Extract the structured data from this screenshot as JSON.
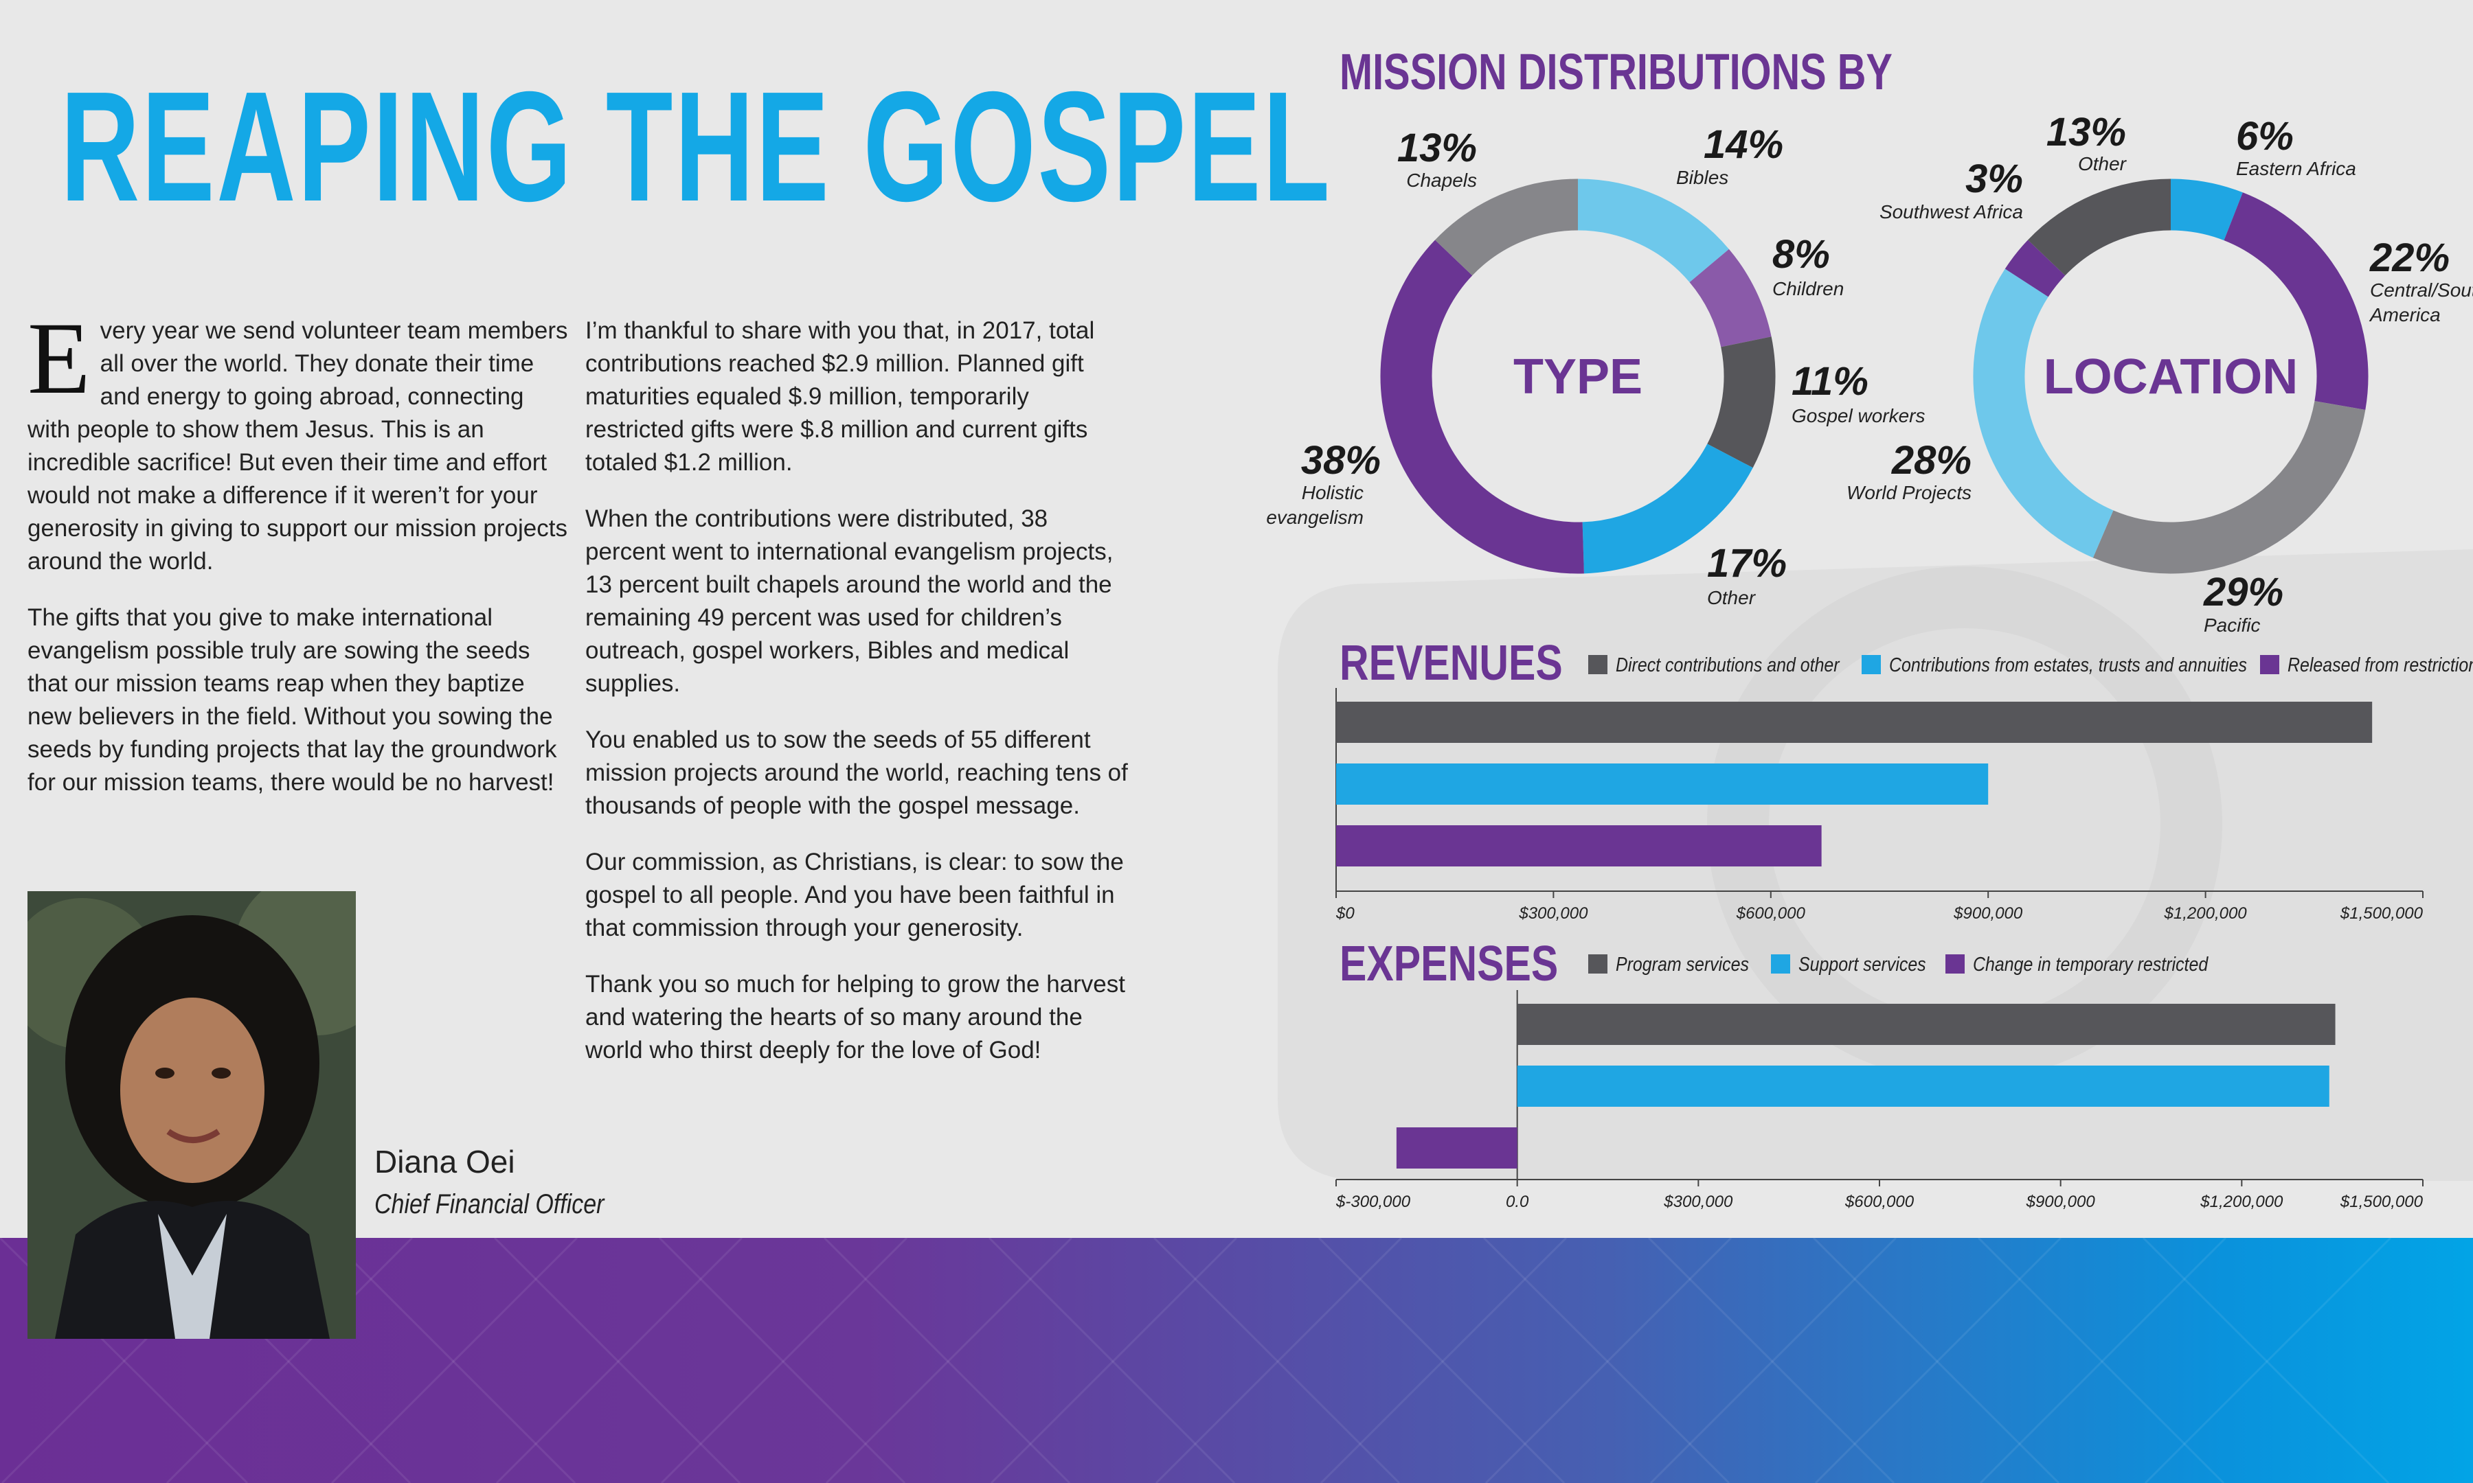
{
  "page": {
    "title": "REAPING THE GOSPEL",
    "dropcap": "E",
    "col1": [
      "very year we send volunteer team members all over the world. They donate their time and energy to going abroad, connecting with people to show them Jesus. This is an incredible sacrifice! But even their time and effort would not make a difference if it weren’t for your generosity in giving to support our mission projects around the world.",
      "The gifts that you give to make international evangelism possible truly are sowing the seeds that our mission teams reap when they baptize new believers in the field. Without you sowing the seeds by funding projects that lay the groundwork for our mission teams, there would be no harvest!"
    ],
    "col2": [
      "I’m thankful to share with you that, in 2017, total contributions reached $2.9 million. Planned gift maturities equaled $.9 million, temporarily restricted gifts were $.8 million and current gifts totaled $1.2 million.",
      "When the contributions were distributed, 38 percent went to international evangelism projects, 13 percent built chapels around the world and the remaining 49 percent was used for children’s outreach, gospel workers, Bibles and medical supplies.",
      "You enabled us to sow the seeds of 55 different mission projects around the world, reaching tens of thousands of people with the gospel message.",
      "Our commission, as Christians, is clear: to sow the gospel to all people. And you have been faithful in that commission through your generosity.",
      "Thank you so much for helping to grow the harvest and watering the hearts of so many around the world who thirst deeply for the love of God!"
    ],
    "author_name": "Diana Oei",
    "author_role": "Chief Financial Officer",
    "section_title": "MISSION DISTRIBUTIONS BY"
  },
  "colors": {
    "title_blue": "#14a8e6",
    "purple": "#6a3593",
    "dark_gray": "#56565a",
    "mid_gray": "#86868a",
    "light_blue": "#6ec8eb",
    "blue": "#1fa6e3",
    "light_purple": "#8a5aa9"
  },
  "chart_data": [
    {
      "type": "pie",
      "title": "TYPE",
      "slices": [
        {
          "label": "Bibles",
          "value": 14,
          "text": "14%",
          "color": "#6ec8eb"
        },
        {
          "label": "Children",
          "value": 8,
          "text": "8%",
          "color": "#8a5aa9"
        },
        {
          "label": "Gospel workers",
          "value": 11,
          "text": "11%",
          "color": "#56565a"
        },
        {
          "label": "Other",
          "value": 17,
          "text": "17%",
          "color": "#1fa6e3"
        },
        {
          "label": "Holistic evangelism",
          "value": 38,
          "text": "38%",
          "color": "#6a3593"
        },
        {
          "label": "Chapels",
          "value": 13,
          "text": "13%",
          "color": "#86868a"
        }
      ]
    },
    {
      "type": "pie",
      "title": "LOCATION",
      "slices": [
        {
          "label": "Eastern Africa",
          "value": 6,
          "text": "6%",
          "color": "#1fa6e3"
        },
        {
          "label": "Central/South America",
          "value": 22,
          "text": "22%",
          "color": "#6a3593"
        },
        {
          "label": "Pacific",
          "value": 29,
          "text": "29%",
          "color": "#86868a"
        },
        {
          "label": "World Projects",
          "value": 28,
          "text": "28%",
          "color": "#6ec8eb"
        },
        {
          "label": "Southwest Africa",
          "value": 3,
          "text": "3%",
          "color": "#6a3593"
        },
        {
          "label": "Other",
          "value": 13,
          "text": "13%",
          "color": "#56565a"
        }
      ]
    },
    {
      "type": "bar",
      "title": "REVENUES",
      "series": [
        {
          "name": "Direct contributions and other",
          "value": 1430000,
          "color": "#56565a"
        },
        {
          "name": "Contributions from estates, trusts and annuities",
          "value": 900000,
          "color": "#1fa6e3"
        },
        {
          "name": "Released from restriction",
          "value": 670000,
          "color": "#6a3593"
        }
      ],
      "xlim": [
        0,
        1500000
      ],
      "ticks": [
        0,
        300000,
        600000,
        900000,
        1200000,
        1500000
      ],
      "tick_labels": [
        "$0",
        "$300,000",
        "$600,000",
        "$900,000",
        "$1,200,000",
        "$1,500,000"
      ]
    },
    {
      "type": "bar",
      "title": "EXPENSES",
      "series": [
        {
          "name": "Program services",
          "value": 1355000,
          "color": "#56565a"
        },
        {
          "name": "Support services",
          "value": 1345000,
          "color": "#1fa6e3"
        },
        {
          "name": "Change in temporary restricted",
          "value": -200000,
          "color": "#6a3593"
        }
      ],
      "xlim": [
        -300000,
        1500000
      ],
      "ticks": [
        -300000,
        0,
        300000,
        600000,
        900000,
        1200000,
        1500000
      ],
      "tick_labels": [
        "$-300,000",
        "0.0",
        "$300,000",
        "$600,000",
        "$900,000",
        "$1,200,000",
        "$1,500,000"
      ]
    }
  ]
}
